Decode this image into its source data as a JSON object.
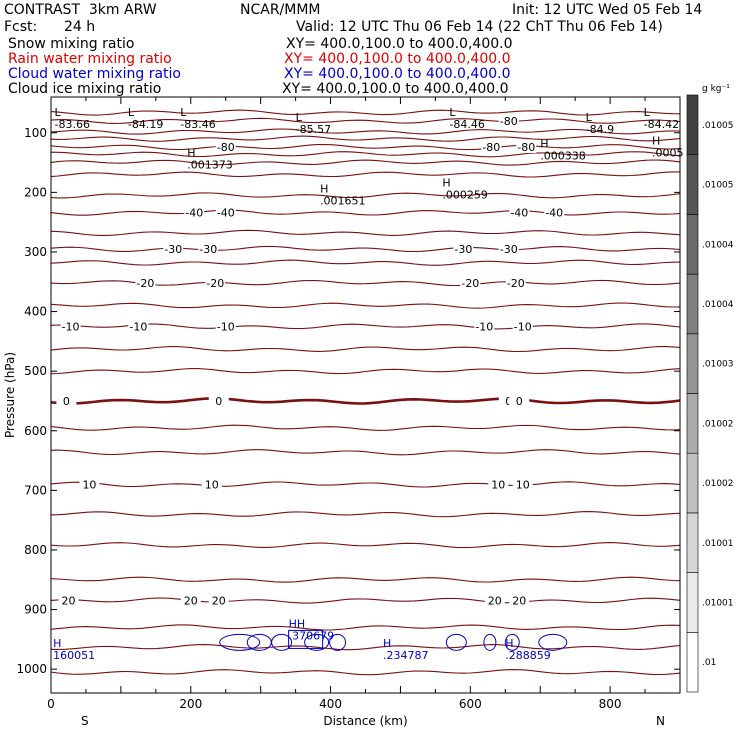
{
  "header": {
    "model": "CONTRAST  3km ARW",
    "org": "NCAR/MMM",
    "init": "Init: 12 UTC Wed 05 Feb 14",
    "fcst_label": "Fcst:",
    "fcst_value": "24 h",
    "valid": "Valid: 12 UTC Thu 06 Feb 14 (22 ChT Thu 06 Feb 14)"
  },
  "fields": [
    {
      "name": "Snow mixing ratio",
      "xy": "XY= 400.0,100.0 to 400.0,400.0",
      "color": "#000000"
    },
    {
      "name": "Rain water mixing ratio",
      "xy": "XY= 400.0,100.0 to 400.0,400.0",
      "color": "#e00000"
    },
    {
      "name": "Cloud water mixing ratio",
      "xy": "XY= 400.0,100.0 to 400.0,400.0",
      "color": "#0000c8"
    },
    {
      "name": "Cloud ice mixing ratio",
      "xy": "XY= 400.0,100.0 to 400.0,400.0",
      "color": "#000000"
    }
  ],
  "chart_data": {
    "type": "line",
    "xlabel": "Distance (km)",
    "ylabel": "Pressure (hPa)",
    "xlim": [
      0,
      900
    ],
    "ylim": [
      1040,
      40
    ],
    "x_ticks": [
      0,
      200,
      400,
      600,
      800
    ],
    "y_ticks": [
      100,
      200,
      300,
      400,
      500,
      600,
      700,
      800,
      900,
      1000
    ],
    "left_end": "S",
    "right_end": "N",
    "temperature_color": "#7a1010",
    "cloud_color": "#0000c8",
    "isotherms": [
      {
        "p": 1005,
        "labels": []
      },
      {
        "p": 963,
        "labels": []
      },
      {
        "p": 930,
        "labels": []
      },
      {
        "p": 885,
        "labels": [
          {
            "x": 25,
            "t": "20"
          },
          {
            "x": 200,
            "t": "20"
          },
          {
            "x": 240,
            "t": "20"
          },
          {
            "x": 635,
            "t": "20"
          },
          {
            "x": 670,
            "t": "20"
          }
        ]
      },
      {
        "p": 850,
        "labels": []
      },
      {
        "p": 792,
        "labels": []
      },
      {
        "p": 740,
        "labels": []
      },
      {
        "p": 690,
        "labels": [
          {
            "x": 55,
            "t": "10"
          },
          {
            "x": 230,
            "t": "10"
          },
          {
            "x": 640,
            "t": "10"
          },
          {
            "x": 675,
            "t": "10"
          }
        ]
      },
      {
        "p": 636,
        "labels": []
      },
      {
        "p": 595,
        "labels": []
      },
      {
        "p": 550,
        "labels": [
          {
            "x": 22,
            "t": "0"
          },
          {
            "x": 240,
            "t": "0"
          },
          {
            "x": 655,
            "t": "0"
          },
          {
            "x": 670,
            "t": "0"
          }
        ]
      },
      {
        "p": 500,
        "labels": []
      },
      {
        "p": 463,
        "labels": []
      },
      {
        "p": 425,
        "labels": [
          {
            "x": 28,
            "t": "-10"
          },
          {
            "x": 125,
            "t": "-10"
          },
          {
            "x": 250,
            "t": "-10"
          },
          {
            "x": 620,
            "t": "-10"
          },
          {
            "x": 675,
            "t": "-10"
          }
        ]
      },
      {
        "p": 390,
        "labels": []
      },
      {
        "p": 352,
        "labels": [
          {
            "x": 135,
            "t": "-20"
          },
          {
            "x": 235,
            "t": "-20"
          },
          {
            "x": 600,
            "t": "-20"
          },
          {
            "x": 665,
            "t": "-20"
          }
        ]
      },
      {
        "p": 318,
        "labels": []
      },
      {
        "p": 295,
        "labels": [
          {
            "x": 175,
            "t": "-30"
          },
          {
            "x": 225,
            "t": "-30"
          },
          {
            "x": 590,
            "t": "-30"
          },
          {
            "x": 655,
            "t": "-30"
          }
        ]
      },
      {
        "p": 268,
        "labels": []
      },
      {
        "p": 234,
        "labels": [
          {
            "x": 205,
            "t": "-40"
          },
          {
            "x": 250,
            "t": "-40"
          },
          {
            "x": 670,
            "t": "-40"
          },
          {
            "x": 720,
            "t": "-40"
          }
        ]
      },
      {
        "p": 205,
        "labels": []
      },
      {
        "p": 170,
        "labels": []
      },
      {
        "p": 150,
        "labels": []
      },
      {
        "p": 136,
        "labels": []
      },
      {
        "p": 124,
        "labels": [
          {
            "x": 250,
            "t": "-80"
          },
          {
            "x": 630,
            "t": "-80"
          },
          {
            "x": 680,
            "t": "-80"
          }
        ]
      },
      {
        "p": 110,
        "labels": []
      },
      {
        "p": 98,
        "labels": []
      },
      {
        "p": 80,
        "labels": [
          {
            "x": 655,
            "t": "-80"
          }
        ]
      },
      {
        "p": 66,
        "labels": []
      }
    ],
    "thick_isotherm_p": 550,
    "extrema": [
      {
        "x": 5,
        "p": 72,
        "mark": "L",
        "value": "-83.66"
      },
      {
        "x": 110,
        "p": 72,
        "mark": "L",
        "value": "-84.19"
      },
      {
        "x": 185,
        "p": 72,
        "mark": "L",
        "value": "-83.46"
      },
      {
        "x": 350,
        "p": 80,
        "mark": "L",
        "value": "-85.57"
      },
      {
        "x": 570,
        "p": 72,
        "mark": "L",
        "value": "-84.46"
      },
      {
        "x": 765,
        "p": 80,
        "mark": "L",
        "value": "-84.9"
      },
      {
        "x": 848,
        "p": 72,
        "mark": "L",
        "value": "-84.42"
      },
      {
        "x": 195,
        "p": 140,
        "mark": "H",
        "value": ".001373"
      },
      {
        "x": 700,
        "p": 125,
        "mark": "H",
        "value": ".000338"
      },
      {
        "x": 860,
        "p": 120,
        "mark": "H",
        "value": ".0005"
      },
      {
        "x": 385,
        "p": 200,
        "mark": "H",
        "value": ".001651"
      },
      {
        "x": 560,
        "p": 190,
        "mark": "H",
        "value": ".000259"
      }
    ],
    "cloud_water": [
      {
        "x": 3,
        "p": 963,
        "mark": "H",
        "value": "160051"
      },
      {
        "x": 340,
        "p": 930,
        "mark": "HH",
        "value": ".370679"
      },
      {
        "x": 475,
        "p": 963,
        "mark": "H",
        "value": ".234787"
      },
      {
        "x": 650,
        "p": 963,
        "mark": "H",
        "value": ".288859"
      }
    ],
    "colorbar": {
      "unit": "g kg⁻¹",
      "labels": [
        ".01",
        ".01001",
        ".01001",
        ".01002",
        ".01002",
        ".01003",
        ".01004",
        ".01004",
        ".01005",
        ".01005"
      ]
    }
  }
}
